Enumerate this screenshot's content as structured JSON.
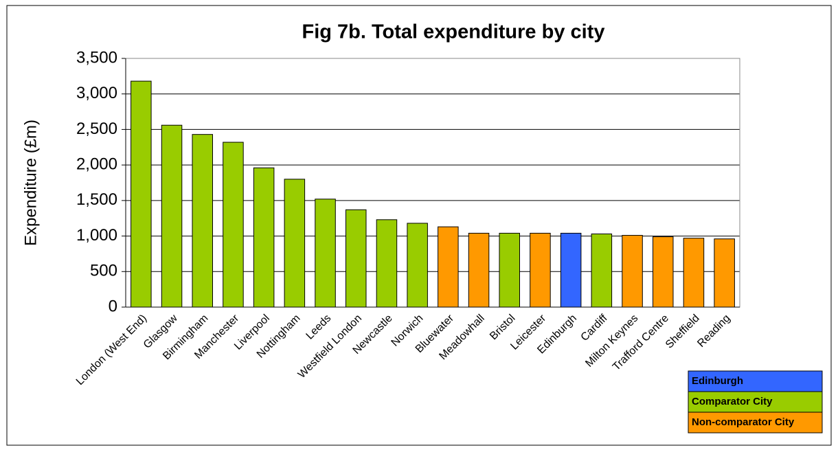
{
  "chart_data": {
    "type": "bar",
    "title": "Fig 7b. Total expenditure by city",
    "y_label": "Expenditure (£m)",
    "categories": [
      "London (West End)",
      "Glasgow",
      "Birmingham",
      "Manchester",
      "Liverpool",
      "Nottingham",
      "Leeds",
      "Westfield London",
      "Newcastle",
      "Norwich",
      "Bluewater",
      "Meadowhall",
      "Bristol",
      "Leicester",
      "Edinburgh",
      "Cardiff",
      "Milton Keynes",
      "Trafford Centre",
      "Sheffield",
      "Reading"
    ],
    "values": [
      3180,
      2560,
      2430,
      2320,
      1960,
      1800,
      1520,
      1370,
      1230,
      1180,
      1130,
      1040,
      1040,
      1040,
      1040,
      1030,
      1010,
      990,
      970,
      960
    ],
    "colors": [
      "#99cc00",
      "#99cc00",
      "#99cc00",
      "#99cc00",
      "#99cc00",
      "#99cc00",
      "#99cc00",
      "#99cc00",
      "#99cc00",
      "#99cc00",
      "#ff9900",
      "#ff9900",
      "#99cc00",
      "#ff9900",
      "#3366ff",
      "#99cc00",
      "#ff9900",
      "#ff9900",
      "#ff9900",
      "#ff9900"
    ],
    "legend": [
      {
        "name": "Edinburgh",
        "color": "#3366ff"
      },
      {
        "name": "Comparator City",
        "color": "#99cc00"
      },
      {
        "name": "Non-comparator City",
        "color": "#ff9900"
      }
    ],
    "ylim": [
      0,
      3500
    ],
    "yticks": [
      0,
      {
        "value": 500,
        "label": "500"
      },
      {
        "value": 1000,
        "label": "1,000"
      },
      {
        "value": 1500,
        "label": "1,500"
      },
      {
        "value": 2000,
        "label": "2,000"
      },
      {
        "value": 2500,
        "label": "2,500"
      },
      {
        "value": 3000,
        "label": "3,000"
      },
      {
        "value": 3500,
        "label": "3,500"
      }
    ],
    "grid": true
  }
}
